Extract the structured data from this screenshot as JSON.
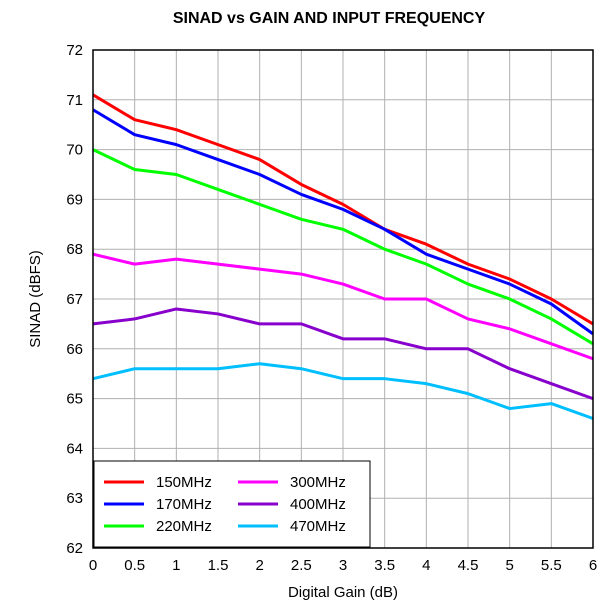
{
  "chart_data": {
    "type": "line",
    "title": "SINAD vs GAIN AND INPUT FREQUENCY",
    "xlabel": "Digital Gain (dB)",
    "ylabel": "SINAD (dBFS)",
    "x": [
      0,
      0.5,
      1,
      1.5,
      2,
      2.5,
      3,
      3.5,
      4,
      4.5,
      5,
      5.5,
      6
    ],
    "xticks": [
      "0",
      "0.5",
      "1",
      "1.5",
      "2",
      "2.5",
      "3",
      "3.5",
      "4",
      "4.5",
      "5",
      "5.5",
      "6"
    ],
    "yticks": [
      "62",
      "63",
      "64",
      "65",
      "66",
      "67",
      "68",
      "69",
      "70",
      "71",
      "72"
    ],
    "xlim": [
      0,
      6
    ],
    "ylim": [
      62,
      72
    ],
    "grid": true,
    "legend_position": "bottom-left",
    "series": [
      {
        "name": "150MHz",
        "color": "#ff0000",
        "values": [
          71.1,
          70.6,
          70.4,
          70.1,
          69.8,
          69.3,
          68.9,
          68.4,
          68.1,
          67.7,
          67.4,
          67.0,
          66.5
        ]
      },
      {
        "name": "170MHz",
        "color": "#0000ff",
        "values": [
          70.8,
          70.3,
          70.1,
          69.8,
          69.5,
          69.1,
          68.8,
          68.4,
          67.9,
          67.6,
          67.3,
          66.9,
          66.3
        ]
      },
      {
        "name": "220MHz",
        "color": "#00ff00",
        "values": [
          70.0,
          69.6,
          69.5,
          69.2,
          68.9,
          68.6,
          68.4,
          68.0,
          67.7,
          67.3,
          67.0,
          66.6,
          66.1
        ]
      },
      {
        "name": "300MHz",
        "color": "#ff00ff",
        "values": [
          67.9,
          67.7,
          67.8,
          67.7,
          67.6,
          67.5,
          67.3,
          67.0,
          67.0,
          66.6,
          66.4,
          66.1,
          65.8
        ]
      },
      {
        "name": "400MHz",
        "color": "#8800cc",
        "values": [
          66.5,
          66.6,
          66.8,
          66.7,
          66.5,
          66.5,
          66.2,
          66.2,
          66.0,
          66.0,
          65.6,
          65.3,
          65.0
        ]
      },
      {
        "name": "470MHz",
        "color": "#00bfff",
        "values": [
          65.4,
          65.6,
          65.6,
          65.6,
          65.7,
          65.6,
          65.4,
          65.4,
          65.3,
          65.1,
          64.8,
          64.9,
          64.6
        ]
      }
    ]
  }
}
